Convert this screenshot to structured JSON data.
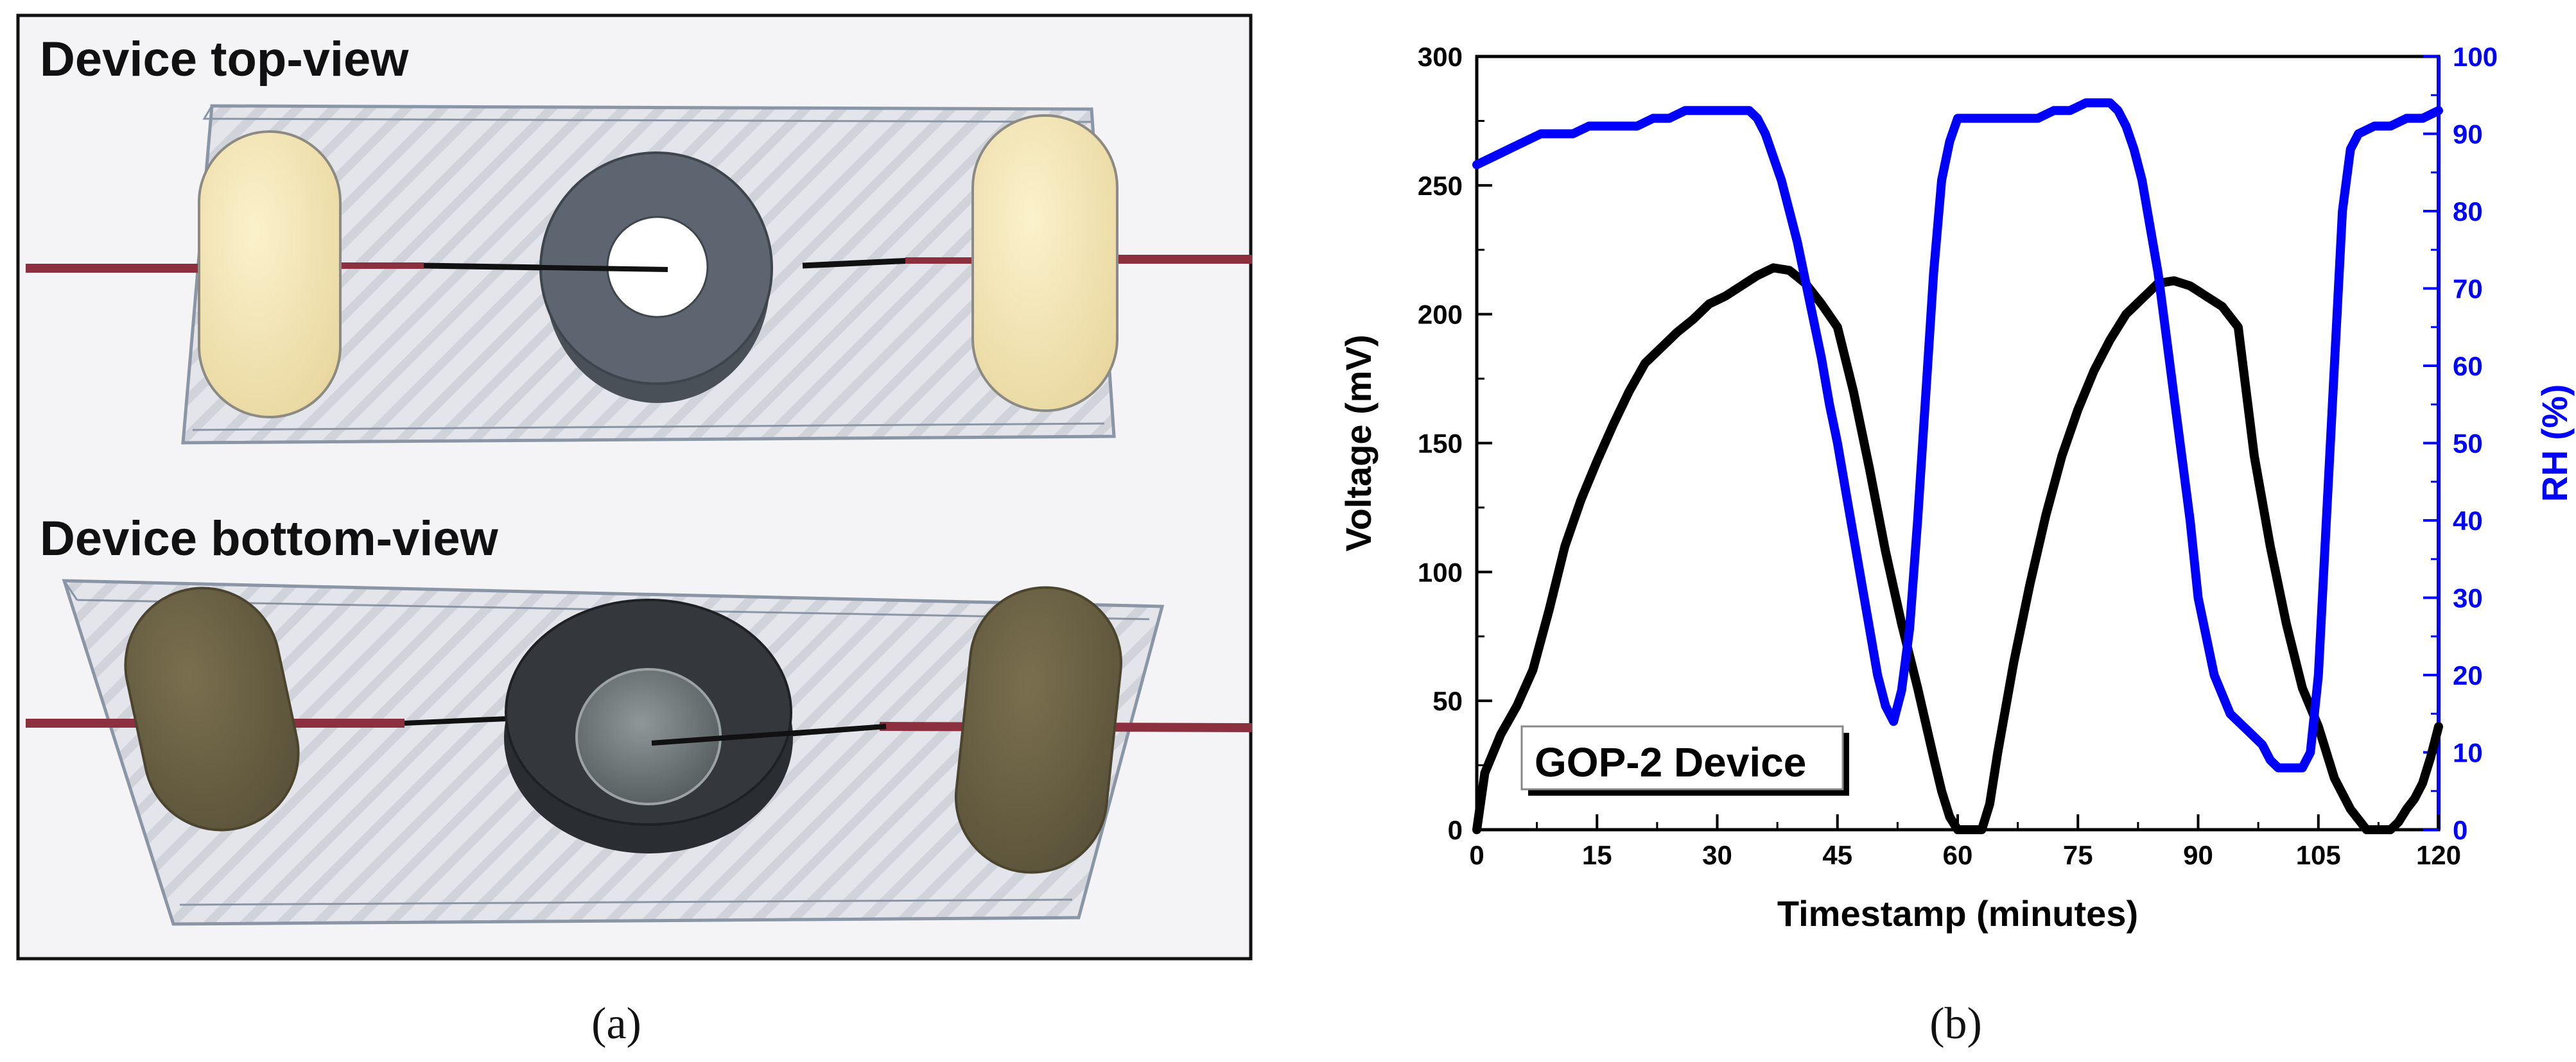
{
  "panel_a": {
    "top_view_title": "Device top-view",
    "bottom_view_title": "Device bottom-view",
    "caption": "(a)"
  },
  "panel_b": {
    "caption": "(b)",
    "legend_label": "GOP-2 Device"
  },
  "colors": {
    "voltage_series": "#000000",
    "rh_series": "#0000ff",
    "rh_axis": "#0000ff",
    "electrode_yellow": "#f4e6b4",
    "electrode_dark": "#6e6546",
    "ring_gray": "#5d6670",
    "ring_dark": "#2f3338",
    "wire_red": "#8c2f3e"
  },
  "chart_data": {
    "type": "line",
    "title": "",
    "xlabel": "Timestamp (minutes)",
    "ylabel": "Voltage (mV)",
    "y2label": "RH (%)",
    "xlim": [
      0,
      120
    ],
    "ylim": [
      0,
      300
    ],
    "y2lim": [
      0,
      100
    ],
    "xticks": [
      0,
      15,
      30,
      45,
      60,
      75,
      90,
      105,
      120
    ],
    "yticks": [
      0,
      50,
      100,
      150,
      200,
      250,
      300
    ],
    "y2ticks": [
      0,
      10,
      20,
      30,
      40,
      50,
      60,
      70,
      80,
      90,
      100
    ],
    "series": [
      {
        "name": "Voltage (mV)",
        "axis": "left",
        "x": [
          0,
          1,
          3,
          5,
          7,
          9,
          11,
          13,
          15,
          17,
          19,
          21,
          23,
          25,
          27,
          29,
          31,
          33,
          35,
          37,
          39,
          41,
          43,
          45,
          47,
          49,
          51,
          53,
          55,
          57,
          58,
          59,
          60,
          61,
          62,
          63,
          64,
          65,
          67,
          69,
          71,
          73,
          75,
          77,
          79,
          81,
          83,
          85,
          87,
          89,
          91,
          93,
          95,
          96,
          97,
          99,
          101,
          103,
          105,
          107,
          109,
          111,
          112,
          113,
          114,
          115,
          116,
          117,
          118,
          119,
          120
        ],
        "values": [
          0,
          22,
          37,
          48,
          62,
          85,
          110,
          128,
          143,
          157,
          170,
          181,
          187,
          193,
          198,
          204,
          207,
          211,
          215,
          218,
          217,
          212,
          204,
          195,
          170,
          140,
          108,
          80,
          55,
          28,
          15,
          5,
          0,
          0,
          0,
          0,
          10,
          30,
          65,
          95,
          122,
          145,
          163,
          178,
          190,
          200,
          206,
          212,
          213,
          211,
          207,
          203,
          195,
          170,
          145,
          110,
          80,
          55,
          40,
          20,
          8,
          0,
          0,
          0,
          0,
          3,
          8,
          12,
          18,
          28,
          40
        ]
      },
      {
        "name": "RH (%)",
        "axis": "right",
        "x": [
          0,
          2,
          4,
          6,
          8,
          10,
          12,
          14,
          16,
          18,
          20,
          22,
          24,
          26,
          28,
          30,
          32,
          34,
          35,
          36,
          37,
          38,
          39,
          40,
          41,
          42,
          43,
          44,
          45,
          46,
          47,
          48,
          49,
          50,
          51,
          52,
          53,
          54,
          55,
          56,
          57,
          58,
          59,
          60,
          62,
          64,
          66,
          68,
          70,
          72,
          74,
          76,
          78,
          79,
          80,
          81,
          82,
          83,
          84,
          85,
          86,
          87,
          88,
          89,
          90,
          92,
          94,
          96,
          98,
          99,
          100,
          101,
          102,
          103,
          104,
          105,
          106,
          107,
          108,
          109,
          110,
          112,
          114,
          116,
          118,
          120
        ],
        "values": [
          86,
          87,
          88,
          89,
          90,
          90,
          90,
          91,
          91,
          91,
          91,
          92,
          92,
          93,
          93,
          93,
          93,
          93,
          92,
          90,
          87,
          84,
          80,
          76,
          71,
          66,
          61,
          55,
          50,
          44,
          38,
          32,
          26,
          20,
          16,
          14,
          18,
          26,
          40,
          56,
          72,
          84,
          89,
          92,
          92,
          92,
          92,
          92,
          92,
          93,
          93,
          94,
          94,
          94,
          93,
          91,
          88,
          84,
          78,
          72,
          64,
          56,
          48,
          40,
          30,
          20,
          15,
          13,
          11,
          9,
          8,
          8,
          8,
          8,
          10,
          20,
          40,
          60,
          80,
          88,
          90,
          91,
          91,
          92,
          92,
          93
        ]
      }
    ],
    "legend": "bottom-left"
  }
}
